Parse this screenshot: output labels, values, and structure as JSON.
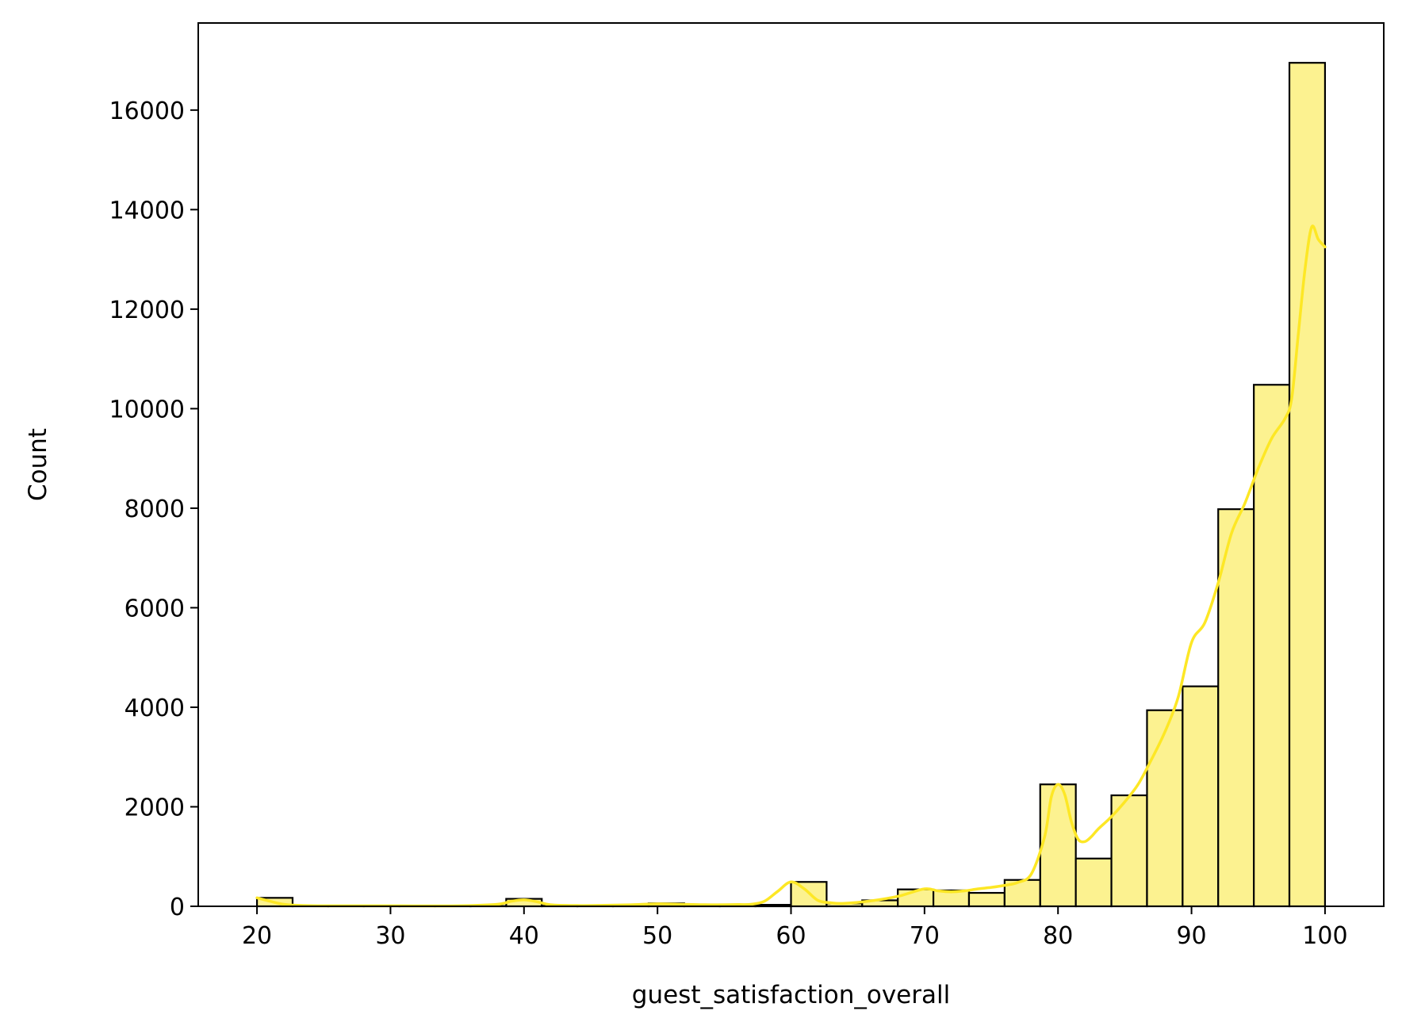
{
  "chart_data": {
    "type": "bar",
    "title": "",
    "xlabel": "guest_satisfaction_overall",
    "ylabel": "Count",
    "xlim": [
      15.6,
      104.4
    ],
    "ylim": [
      0,
      17750
    ],
    "xticks": [
      20,
      30,
      40,
      50,
      60,
      70,
      80,
      90,
      100
    ],
    "yticks": [
      0,
      2000,
      4000,
      6000,
      8000,
      10000,
      12000,
      14000,
      16000
    ],
    "grid": false,
    "legend": "none",
    "bin_width": 2.6667,
    "bins": [
      {
        "x0": 20.0,
        "x1": 22.667,
        "count": 170
      },
      {
        "x0": 22.667,
        "x1": 25.333,
        "count": 10
      },
      {
        "x0": 25.333,
        "x1": 28.0,
        "count": 5
      },
      {
        "x0": 28.0,
        "x1": 30.667,
        "count": 5
      },
      {
        "x0": 30.667,
        "x1": 33.333,
        "count": 5
      },
      {
        "x0": 33.333,
        "x1": 36.0,
        "count": 5
      },
      {
        "x0": 36.0,
        "x1": 38.667,
        "count": 5
      },
      {
        "x0": 38.667,
        "x1": 41.333,
        "count": 150
      },
      {
        "x0": 41.333,
        "x1": 44.0,
        "count": 10
      },
      {
        "x0": 44.0,
        "x1": 46.667,
        "count": 15
      },
      {
        "x0": 46.667,
        "x1": 49.333,
        "count": 20
      },
      {
        "x0": 49.333,
        "x1": 52.0,
        "count": 60
      },
      {
        "x0": 52.0,
        "x1": 54.667,
        "count": 20
      },
      {
        "x0": 54.667,
        "x1": 57.333,
        "count": 20
      },
      {
        "x0": 57.333,
        "x1": 60.0,
        "count": 30
      },
      {
        "x0": 60.0,
        "x1": 62.667,
        "count": 490
      },
      {
        "x0": 62.667,
        "x1": 65.333,
        "count": 60
      },
      {
        "x0": 65.333,
        "x1": 68.0,
        "count": 120
      },
      {
        "x0": 68.0,
        "x1": 70.667,
        "count": 340
      },
      {
        "x0": 70.667,
        "x1": 73.333,
        "count": 320
      },
      {
        "x0": 73.333,
        "x1": 76.0,
        "count": 270
      },
      {
        "x0": 76.0,
        "x1": 78.667,
        "count": 530
      },
      {
        "x0": 78.667,
        "x1": 81.333,
        "count": 2450
      },
      {
        "x0": 81.333,
        "x1": 84.0,
        "count": 960
      },
      {
        "x0": 84.0,
        "x1": 86.667,
        "count": 2230
      },
      {
        "x0": 86.667,
        "x1": 89.333,
        "count": 3940
      },
      {
        "x0": 89.333,
        "x1": 92.0,
        "count": 4420
      },
      {
        "x0": 92.0,
        "x1": 94.667,
        "count": 7980
      },
      {
        "x0": 94.667,
        "x1": 97.333,
        "count": 10480
      },
      {
        "x0": 97.333,
        "x1": 100.0,
        "count": 16950
      }
    ],
    "kde": {
      "x": [
        20,
        21,
        22,
        23,
        25,
        30,
        35,
        38,
        39,
        40,
        41,
        42,
        44,
        46,
        48,
        50,
        52,
        54,
        56,
        57,
        58,
        59,
        60,
        61,
        62,
        63,
        64,
        66,
        68,
        70,
        71,
        72,
        73,
        74,
        75,
        76,
        77,
        78,
        79,
        79.5,
        80,
        80.5,
        81,
        81.5,
        82,
        82.5,
        83,
        84,
        85,
        86,
        87,
        88,
        89,
        90,
        91,
        92,
        93,
        94,
        95,
        96,
        97,
        97.5,
        98,
        98.5,
        99,
        99.5,
        100
      ],
      "y": [
        170,
        100,
        40,
        20,
        10,
        10,
        10,
        40,
        100,
        130,
        90,
        30,
        15,
        20,
        30,
        50,
        40,
        30,
        35,
        40,
        100,
        300,
        490,
        350,
        120,
        70,
        60,
        110,
        200,
        350,
        310,
        290,
        310,
        350,
        380,
        420,
        480,
        650,
        1400,
        2200,
        2450,
        2250,
        1700,
        1350,
        1300,
        1400,
        1550,
        1800,
        2100,
        2450,
        2950,
        3500,
        4200,
        5300,
        5700,
        6500,
        7500,
        8100,
        8800,
        9400,
        9800,
        10200,
        11500,
        12800,
        13650,
        13400,
        13250
      ]
    },
    "colors": {
      "bar_fill": "#fcf290",
      "bar_edge": "#000000",
      "kde_line": "#fde725",
      "axis": "#000000"
    }
  }
}
